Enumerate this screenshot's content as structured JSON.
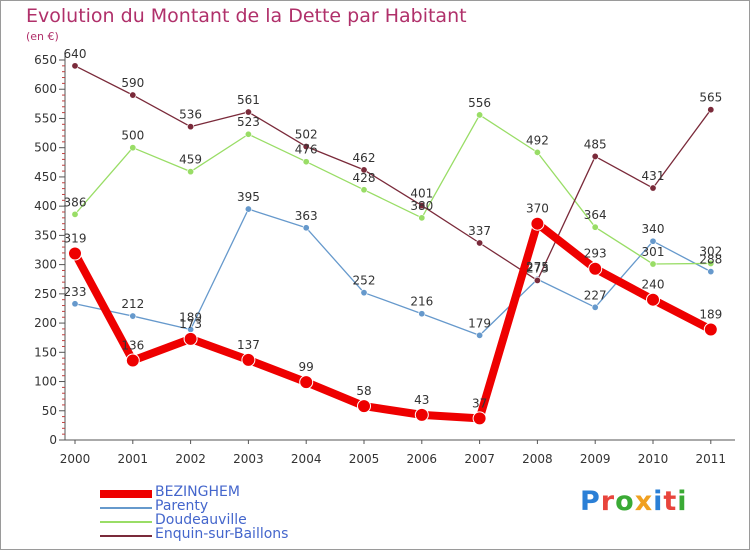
{
  "title": "Evolution du Montant de la Dette par Habitant",
  "unit": "(en €)",
  "logo": {
    "text": "Proxiti",
    "letter_colors": [
      "#2a7fd6",
      "#e8453c",
      "#3aaa35",
      "#f0a020",
      "#2a7fd6",
      "#e8453c",
      "#3aaa35"
    ]
  },
  "chart_data": {
    "type": "line",
    "title": "Evolution du Montant de la Dette par Habitant",
    "ylabel": "(en €)",
    "categories": [
      "2000",
      "2001",
      "2002",
      "2003",
      "2004",
      "2005",
      "2006",
      "2007",
      "2008",
      "2009",
      "2010",
      "2011"
    ],
    "ylim": [
      0,
      650
    ],
    "yticks": [
      0,
      50,
      100,
      150,
      200,
      250,
      300,
      350,
      400,
      450,
      500,
      550,
      600,
      650
    ],
    "grid": "none",
    "legend_position": "bottom-left",
    "series": [
      {
        "name": "BEZINGHEM",
        "color": "#ee0000",
        "emphasis": true,
        "values": [
          319,
          136,
          173,
          137,
          99,
          58,
          43,
          37,
          370,
          293,
          240,
          189
        ]
      },
      {
        "name": "Parenty",
        "color": "#6699cc",
        "emphasis": false,
        "values": [
          233,
          212,
          189,
          395,
          363,
          252,
          216,
          179,
          275,
          227,
          340,
          288
        ]
      },
      {
        "name": "Doudeauville",
        "color": "#99dd66",
        "emphasis": false,
        "values": [
          386,
          500,
          459,
          523,
          476,
          428,
          380,
          556,
          492,
          364,
          301,
          302
        ]
      },
      {
        "name": "Enquin-sur-Baillons",
        "color": "#7a2a3a",
        "emphasis": false,
        "values": [
          640,
          590,
          536,
          561,
          502,
          462,
          401,
          337,
          273,
          485,
          431,
          565
        ]
      }
    ]
  }
}
